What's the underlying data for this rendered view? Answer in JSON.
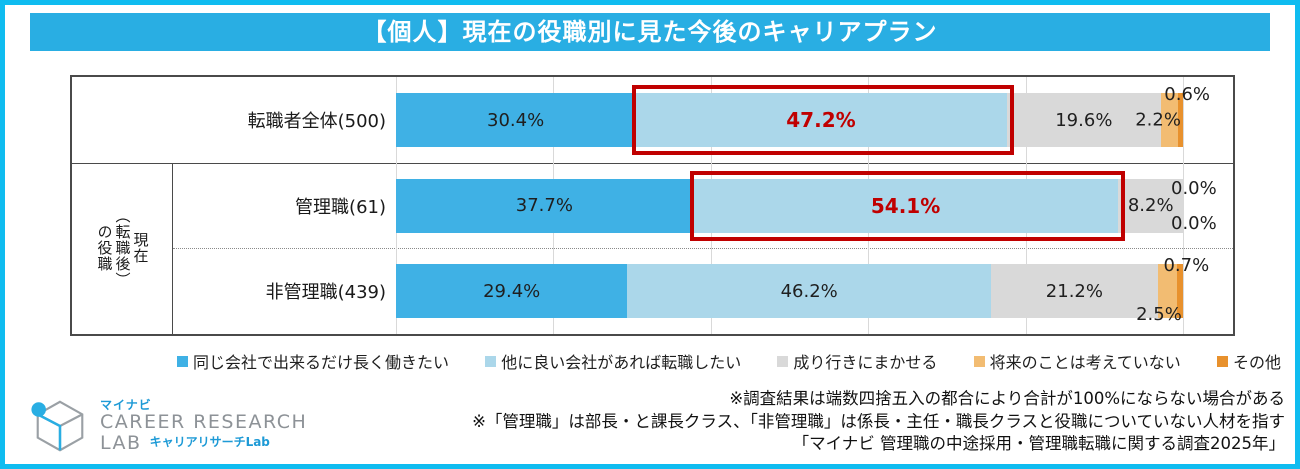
{
  "title": "【個人】現在の役職別に見た今後のキャリアプラン",
  "colors": {
    "frame": "#0fbcf0",
    "title_bg": "#29aee3",
    "highlight_red": "#c00000",
    "grid": "#d9d9d9",
    "box_border": "#4a4a4a"
  },
  "chart_data": {
    "type": "bar",
    "stacked": true,
    "orientation": "horizontal",
    "unit": "%",
    "xlim": [
      0,
      100
    ],
    "gridline_step_pct": 20,
    "categories": [
      "転職者全体(500)",
      "管理職(61)",
      "非管理職(439)"
    ],
    "row_group_label": "現在（転職後）の役職",
    "row_group_label_columns": [
      "現在",
      "（転職後）",
      "の役職"
    ],
    "series": [
      {
        "name": "同じ会社で出来るだけ長く働きたい",
        "color": "#3fb1e5",
        "values": [
          30.4,
          37.7,
          29.4
        ]
      },
      {
        "name": "他に良い会社があれば転職したい",
        "color": "#abd7ea",
        "values": [
          47.2,
          54.1,
          46.2
        ]
      },
      {
        "name": "成り行きにまかせる",
        "color": "#d9d9d9",
        "values": [
          19.6,
          8.2,
          21.2
        ]
      },
      {
        "name": "将来のことは考えていない",
        "color": "#f2bc72",
        "values": [
          2.2,
          0.0,
          2.5
        ]
      },
      {
        "name": "その他",
        "color": "#e8912d",
        "values": [
          0.6,
          0.0,
          0.7
        ]
      }
    ],
    "label_placements": [
      [
        "in",
        "in-red",
        "in",
        "out-mid",
        "out-top"
      ],
      [
        "in",
        "in-red",
        "in",
        "out-top-end",
        "out-bottom-end"
      ],
      [
        "in",
        "in",
        "in",
        "out-bottom",
        "out-top"
      ]
    ],
    "highlighted_segments": [
      {
        "row": 0,
        "series": 1,
        "value_label": "47.2%"
      },
      {
        "row": 1,
        "series": 1,
        "value_label": "54.1%"
      }
    ],
    "legend_position": "bottom"
  },
  "footnotes": [
    "※調査結果は端数四捨五入の都合により合計が100%にならない場合がある",
    "※「管理職」は部長・と課長クラス、「非管理職」は係長・主任・職長クラスと役職についていない人材を指す",
    "「マイナビ 管理職の中途採用・管理職転職に関する調査2025年」"
  ],
  "logo": {
    "brand": "マイナビ",
    "name_line1": "CAREER RESEARCH",
    "name_line2": "LAB",
    "subtitle": "キャリアリサーチLab"
  }
}
